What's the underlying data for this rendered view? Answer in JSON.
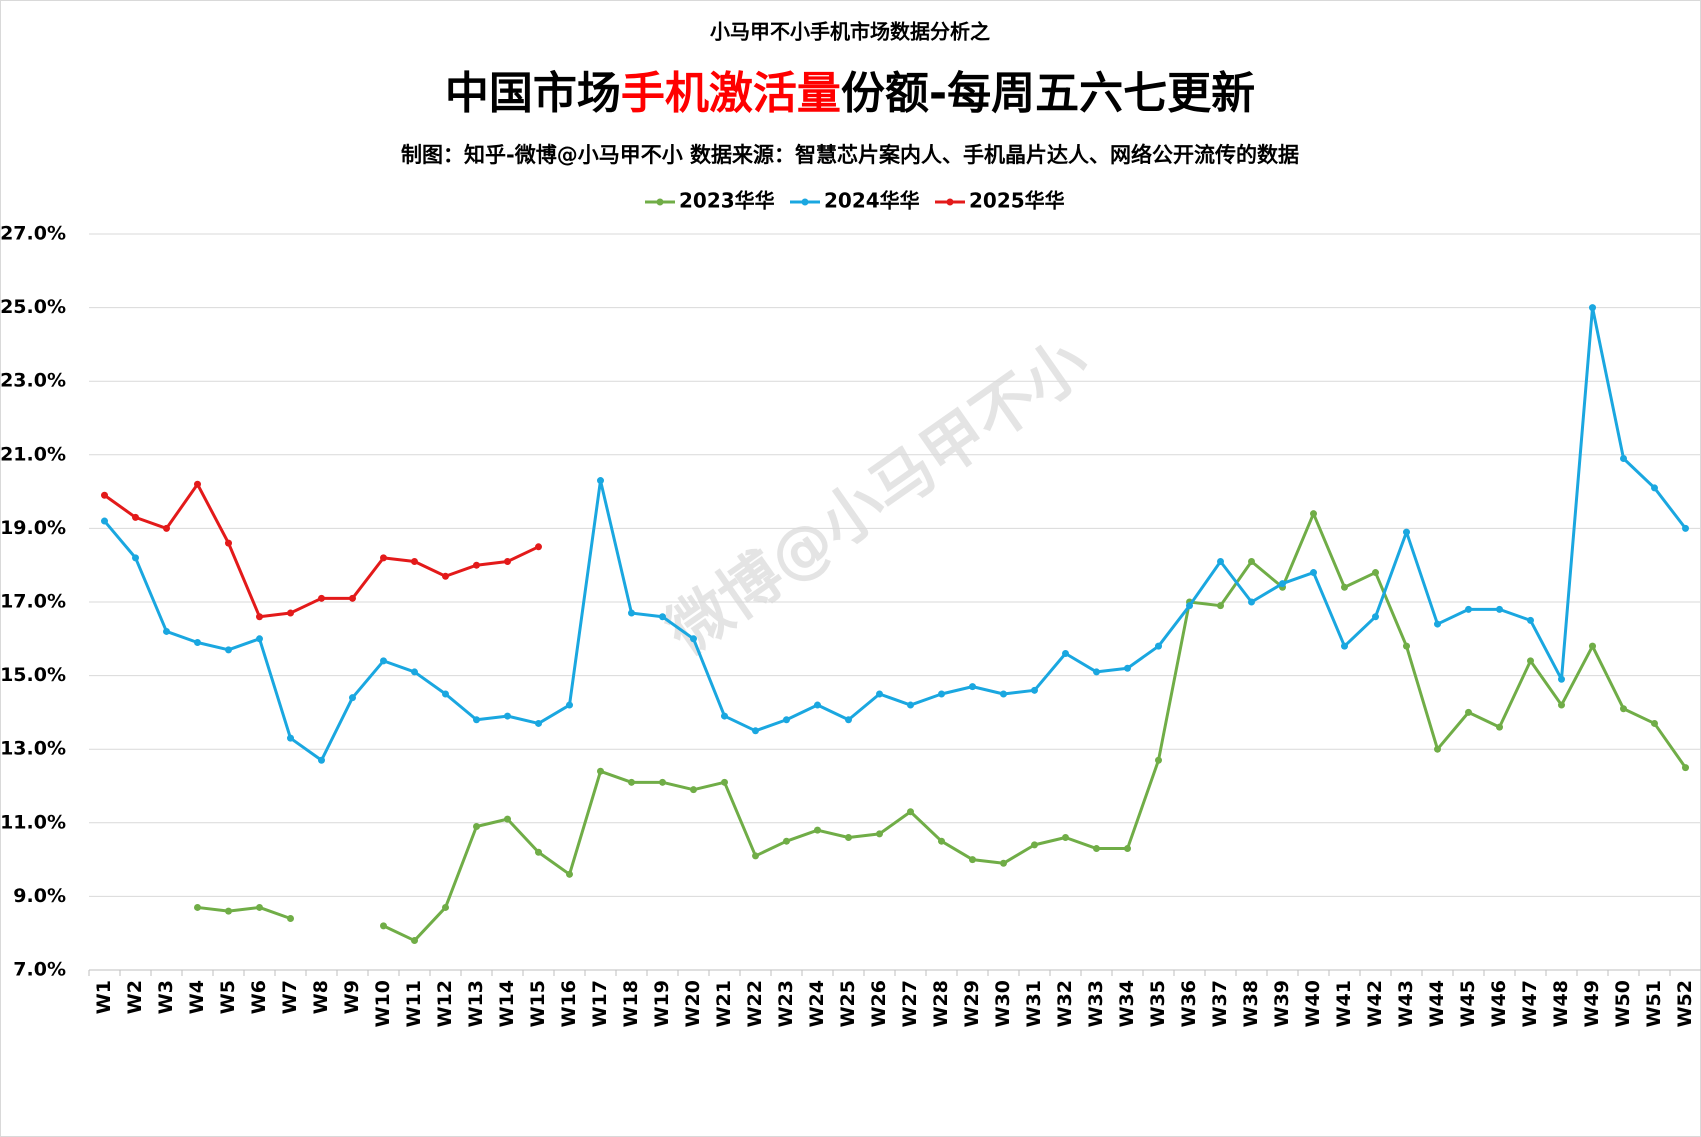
{
  "chart_data": {
    "type": "line",
    "supertitle": "小马甲不小手机市场数据分析之",
    "title": [
      "中国市场",
      "手机激活量",
      "份额-每周五六七更新"
    ],
    "subtitle": "制图：知乎-微博@小马甲不小  数据来源：智慧芯片案内人、手机晶片达人、网络公开流传的数据",
    "watermark": "微博@小马甲不小",
    "categories": [
      "W1",
      "W2",
      "W3",
      "W4",
      "W5",
      "W6",
      "W7",
      "W8",
      "W9",
      "W10",
      "W11",
      "W12",
      "W13",
      "W14",
      "W15",
      "W16",
      "W17",
      "W18",
      "W19",
      "W20",
      "W21",
      "W22",
      "W23",
      "W24",
      "W25",
      "W26",
      "W27",
      "W28",
      "W29",
      "W30",
      "W31",
      "W32",
      "W33",
      "W34",
      "W35",
      "W36",
      "W37",
      "W38",
      "W39",
      "W40",
      "W41",
      "W42",
      "W43",
      "W44",
      "W45",
      "W46",
      "W47",
      "W48",
      "W49",
      "W50",
      "W51",
      "W52"
    ],
    "series": [
      {
        "name": "2023华华",
        "color": "#70ad47",
        "values": [
          null,
          null,
          null,
          8.7,
          8.6,
          8.7,
          8.4,
          null,
          null,
          8.2,
          7.8,
          8.7,
          10.9,
          11.1,
          10.2,
          9.6,
          12.4,
          12.1,
          12.1,
          11.9,
          12.1,
          10.1,
          10.5,
          10.8,
          10.6,
          10.7,
          11.3,
          10.5,
          10.0,
          9.9,
          10.4,
          10.6,
          10.3,
          10.3,
          12.7,
          17.0,
          16.9,
          18.1,
          17.4,
          19.4,
          17.4,
          17.8,
          15.8,
          13.0,
          14.0,
          13.6,
          15.4,
          14.2,
          15.8,
          14.1,
          13.7,
          12.5
        ]
      },
      {
        "name": "2024华华",
        "color": "#1aa7e0",
        "values": [
          19.2,
          18.2,
          16.2,
          15.9,
          15.7,
          16.0,
          13.3,
          12.7,
          14.4,
          15.4,
          15.1,
          14.5,
          13.8,
          13.9,
          13.7,
          14.2,
          20.3,
          16.7,
          16.6,
          16.0,
          13.9,
          13.5,
          13.8,
          14.2,
          13.8,
          14.5,
          14.2,
          14.5,
          14.7,
          14.5,
          14.6,
          15.6,
          15.1,
          15.2,
          15.8,
          16.9,
          18.1,
          17.0,
          17.5,
          17.8,
          15.8,
          16.6,
          18.9,
          16.4,
          16.8,
          16.8,
          16.5,
          14.9,
          25.0,
          20.9,
          20.1,
          19.0
        ]
      },
      {
        "name": "2025华华",
        "color": "#e31a1a",
        "values": [
          19.9,
          19.3,
          19.0,
          20.2,
          18.6,
          16.6,
          16.7,
          17.1,
          17.1,
          18.2,
          18.1,
          17.7,
          18.0,
          18.1,
          18.5,
          null,
          null,
          null,
          null,
          null,
          null,
          null,
          null,
          null,
          null,
          null,
          null,
          null,
          null,
          null,
          null,
          null,
          null,
          null,
          null,
          null,
          null,
          null,
          null,
          null,
          null,
          null,
          null,
          null,
          null,
          null,
          null,
          null,
          null,
          null,
          null,
          null
        ]
      }
    ],
    "title_highlight_color": "#ff0000",
    "ylim": [
      7,
      27
    ],
    "yticks": [
      {
        "value": 7,
        "label": "7.0%"
      },
      {
        "value": 9,
        "label": "9.0%"
      },
      {
        "value": 11,
        "label": "11.0%"
      },
      {
        "value": 13,
        "label": "13.0%"
      },
      {
        "value": 15,
        "label": "15.0%"
      },
      {
        "value": 17,
        "label": "17.0%"
      },
      {
        "value": 19,
        "label": "19.0%"
      },
      {
        "value": 21,
        "label": "21.0%"
      },
      {
        "value": 23,
        "label": "23.0%"
      },
      {
        "value": 25,
        "label": "25.0%"
      },
      {
        "value": 27,
        "label": "27.0%"
      }
    ],
    "grid": true,
    "legend": "top"
  }
}
